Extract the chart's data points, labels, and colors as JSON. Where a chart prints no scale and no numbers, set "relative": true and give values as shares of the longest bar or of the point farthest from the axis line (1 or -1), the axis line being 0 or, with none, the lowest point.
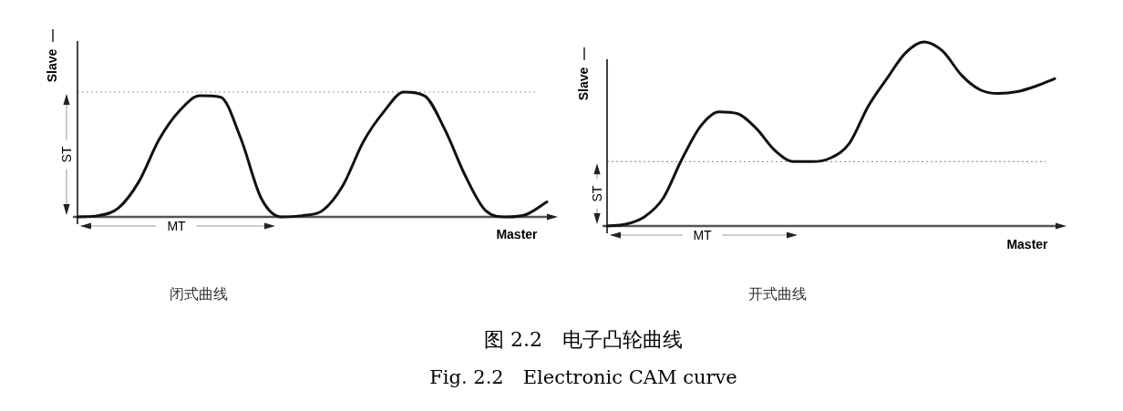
{
  "chart_data": [
    {
      "type": "line",
      "relative": true,
      "title": "闭式曲线",
      "xlabel": "Master",
      "ylabel": "Slave",
      "annotations": [
        "MT",
        "ST"
      ],
      "grid": false,
      "categories": [
        null,
        null,
        null,
        null,
        null,
        null,
        null,
        null,
        null,
        null,
        null,
        null,
        null,
        null,
        null,
        null,
        null,
        null,
        null,
        null,
        null,
        null,
        null,
        null
      ],
      "series": [
        {
          "color": "#111111",
          "values": [
            0,
            0.01,
            0.07,
            0.28,
            0.62,
            0.85,
            0.97,
            0.96,
            0.63,
            0.15,
            0,
            0.01,
            0.05,
            0.25,
            0.6,
            0.84,
            1,
            0.97,
            0.7,
            0.33,
            0.05,
            0,
            0.02,
            0.12
          ]
        }
      ],
      "ref_lines": [
        {
          "axis": "y",
          "value": 1,
          "color": "#999999",
          "line_style": "dotted"
        }
      ]
    },
    {
      "type": "line",
      "relative": true,
      "title": "开式曲线",
      "xlabel": "Master",
      "ylabel": "Slave",
      "annotations": [
        "MT",
        "ST"
      ],
      "grid": false,
      "categories": [
        null,
        null,
        null,
        null,
        null,
        null,
        null,
        null,
        null,
        null,
        null,
        null,
        null,
        null,
        null,
        null,
        null,
        null,
        null,
        null,
        null,
        null,
        null,
        null,
        null
      ],
      "series": [
        {
          "color": "#111111",
          "values": [
            0,
            0.01,
            0.05,
            0.15,
            0.36,
            0.54,
            0.62,
            0.61,
            0.53,
            0.41,
            0.35,
            0.35,
            0.37,
            0.45,
            0.65,
            0.8,
            0.94,
            1,
            0.95,
            0.82,
            0.74,
            0.72,
            0.73,
            0.76,
            0.8
          ]
        }
      ],
      "ref_lines": [
        {
          "axis": "y",
          "value": 0.35,
          "color": "#999999",
          "line_style": "dotted"
        }
      ]
    },
    {
      "type": "other",
      "title": "图 2.2　电子凸轮曲线",
      "subtitle": "Fig. 2.2　Electronic CAM curve"
    }
  ]
}
